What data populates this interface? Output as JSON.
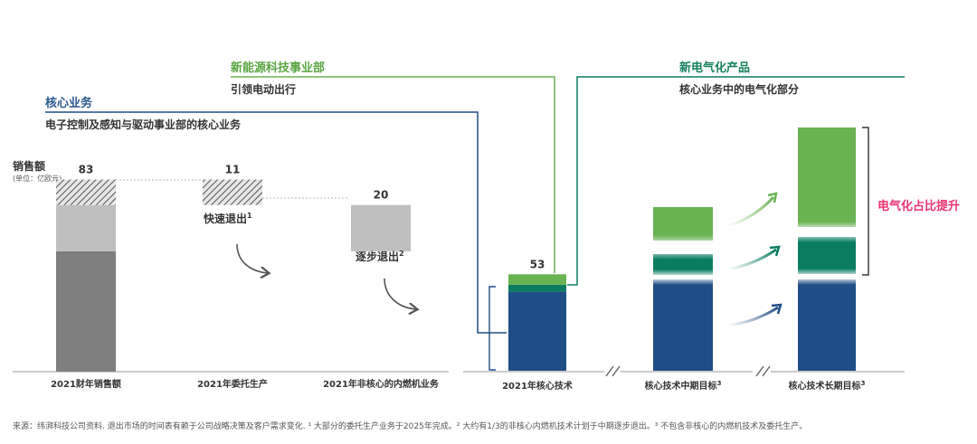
{
  "colors": {
    "core_blue": "#1f4e86",
    "new_energy_green": "#6ab353",
    "electrification_green": "#0a7d61",
    "electric_text": "#e8336e",
    "sales_dark": "#7f7f7f",
    "sales_light": "#bfbfbf",
    "core_label": "#2b5a8f",
    "new_energy_label": "#5aa542",
    "electric_label": "#15805f"
  },
  "labels": {
    "core_business": "核心业务",
    "core_business_desc": "电子控制及感知与驱动事业部的核心业务",
    "new_energy": "新能源科技事业部",
    "new_energy_desc": "引领电动出行",
    "electrification": "新电气化产品",
    "electrification_desc": "核心业务中的电气化部分",
    "sales": "销售额",
    "unit": "(单位：亿欧元)",
    "fast_exit": "快速退出",
    "fast_exit_sup": "1",
    "gradual_exit": "逐步退出",
    "gradual_exit_sup": "2",
    "electric_share": "电气化占比提升"
  },
  "chart_data": [
    {
      "type": "bar",
      "subtype": "waterfall",
      "categories": [
        "2021财年销售额",
        "2021年委托生产",
        "2021年非核心的内燃机业务"
      ],
      "values": [
        83,
        11,
        20
      ],
      "value_labels": [
        "83",
        "11",
        "20"
      ],
      "ylim": [
        0,
        90
      ],
      "grid": false
    },
    {
      "type": "bar",
      "subtype": "stacked",
      "categories": [
        "2021年核心技术",
        "核心技术中期目标",
        "核心技术长期目标"
      ],
      "category_sups": [
        "",
        "3",
        "3"
      ],
      "series": [
        {
          "name": "核心业务",
          "values": [
            46,
            null,
            null
          ]
        },
        {
          "name": "新电气化产品",
          "values": [
            2,
            null,
            null
          ]
        },
        {
          "name": "新能源科技事业部",
          "values": [
            5,
            null,
            null
          ]
        }
      ],
      "totals": [
        53,
        null,
        null
      ],
      "total_labels": [
        "53",
        "",
        ""
      ],
      "grid": false
    }
  ],
  "footnote": "来源：纬湃科技公司资料. 退出市场的时间表有赖于公司战略决策及客户需求变化. ¹ 大部分的委托生产业务于2025年完成。² 大约有1/3的非核心内燃机技术计划于中期逐步退出。³ 不包含非核心的内燃机技术及委托生产。"
}
